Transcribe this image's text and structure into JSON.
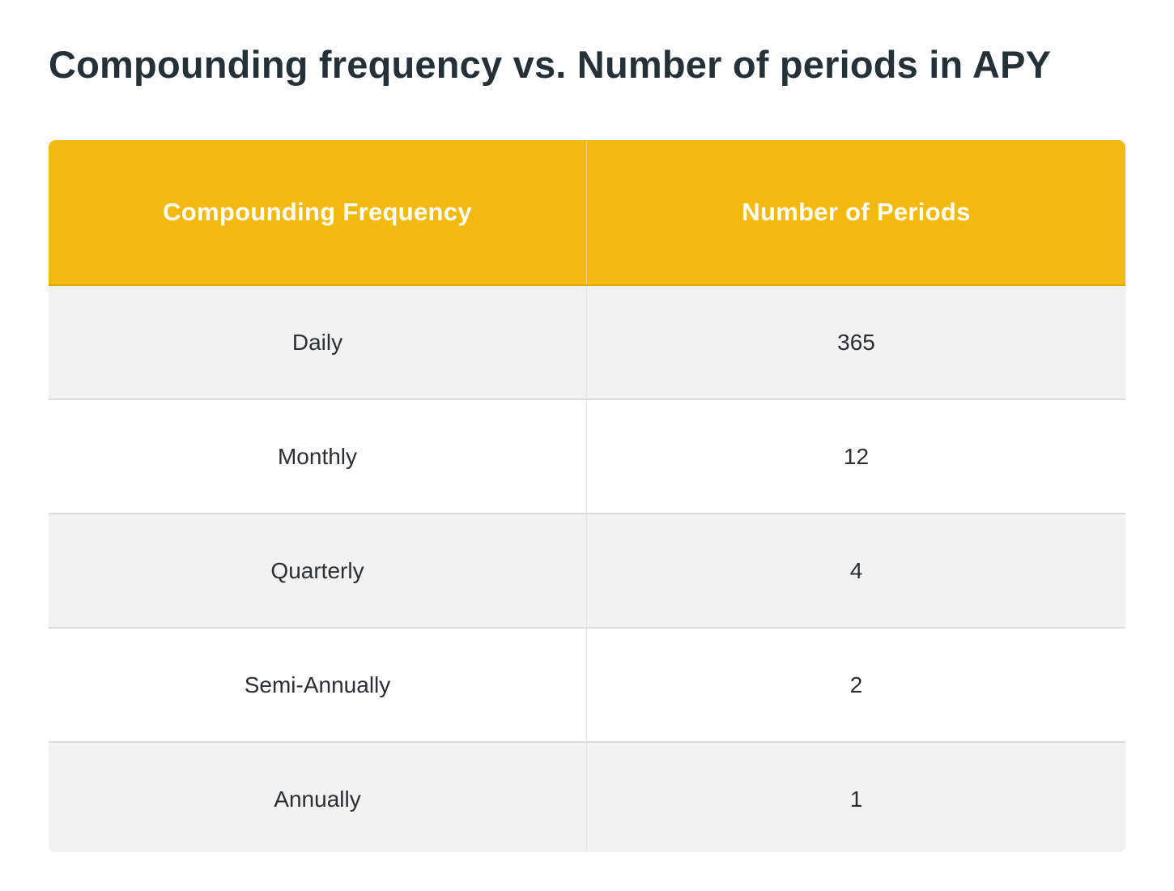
{
  "title": "Compounding frequency vs. Number of periods in APY",
  "table": {
    "headers": [
      "Compounding Frequency",
      "Number of Periods"
    ],
    "rows": [
      [
        "Daily",
        "365"
      ],
      [
        "Monthly",
        "12"
      ],
      [
        "Quarterly",
        "4"
      ],
      [
        "Semi-Annually",
        "2"
      ],
      [
        "Annually",
        "1"
      ]
    ]
  },
  "colors": {
    "header_background": "#f2b90e",
    "header_text": "#ffffff",
    "title_text": "#253037",
    "row_shaded": "#f2f2f2",
    "row_plain": "#ffffff"
  }
}
